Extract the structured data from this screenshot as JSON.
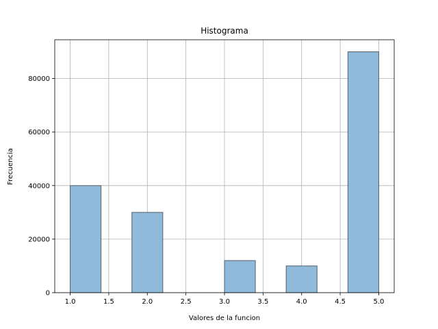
{
  "chart_data": {
    "type": "bar",
    "subtype": "histogram",
    "title": "Histograma",
    "xlabel": "Valores de la funcion",
    "ylabel": "Frecuencia",
    "xlim": [
      0.8,
      5.2
    ],
    "ylim": [
      0,
      94500
    ],
    "grid": true,
    "x_ticks": [
      "1.0",
      "1.5",
      "2.0",
      "2.5",
      "3.0",
      "3.5",
      "4.0",
      "4.5",
      "5.0"
    ],
    "y_ticks": [
      "0",
      "20000",
      "40000",
      "60000",
      "80000"
    ],
    "bins": [
      {
        "start": 1.0,
        "end": 1.4,
        "value": 40000
      },
      {
        "start": 1.4,
        "end": 1.8,
        "value": 0
      },
      {
        "start": 1.8,
        "end": 2.2,
        "value": 30000
      },
      {
        "start": 2.2,
        "end": 2.6,
        "value": 0
      },
      {
        "start": 2.6,
        "end": 3.0,
        "value": 0
      },
      {
        "start": 3.0,
        "end": 3.4,
        "value": 12000
      },
      {
        "start": 3.4,
        "end": 3.8,
        "value": 0
      },
      {
        "start": 3.8,
        "end": 4.2,
        "value": 10000
      },
      {
        "start": 4.2,
        "end": 4.6,
        "value": 0
      },
      {
        "start": 4.6,
        "end": 5.0,
        "value": 90000
      }
    ],
    "colors": {
      "bar_fill": "#8fbad9",
      "bar_edge": "#555f6a",
      "grid": "#b0b0b0",
      "axis": "#000000"
    }
  }
}
